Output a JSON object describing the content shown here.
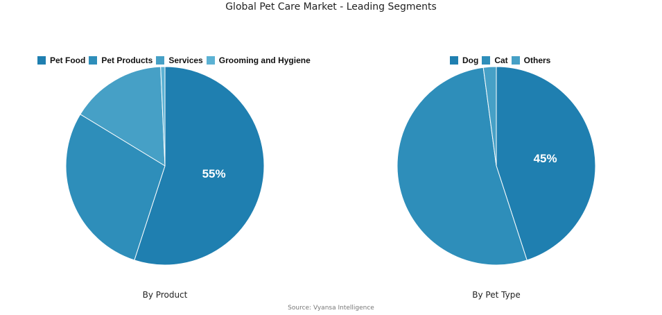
{
  "title": "Global Pet Care Market - Leading Segments",
  "source": "Source: Vyansa Intelligence",
  "chart_data": [
    {
      "type": "pie",
      "title": "By Product",
      "categories": [
        "Pet Food",
        "Pet Products",
        "Services",
        "Grooming and Hygiene"
      ],
      "values": [
        55,
        28.7,
        15.6,
        0.7
      ],
      "colors": [
        "#1f7fb0",
        "#2e8eba",
        "#46a0c6",
        "#5cb2d4"
      ],
      "data_labels": [
        {
          "category": "Pet Food",
          "label": "55%"
        }
      ],
      "legend_position": "top"
    },
    {
      "type": "pie",
      "title": "By Pet Type",
      "categories": [
        "Dog",
        "Cat",
        "Others"
      ],
      "values": [
        45,
        52.9,
        2.1
      ],
      "colors": [
        "#1f7fb0",
        "#2e8eba",
        "#46a0c6"
      ],
      "data_labels": [
        {
          "category": "Dog",
          "label": "45%"
        }
      ],
      "legend_position": "top"
    }
  ]
}
